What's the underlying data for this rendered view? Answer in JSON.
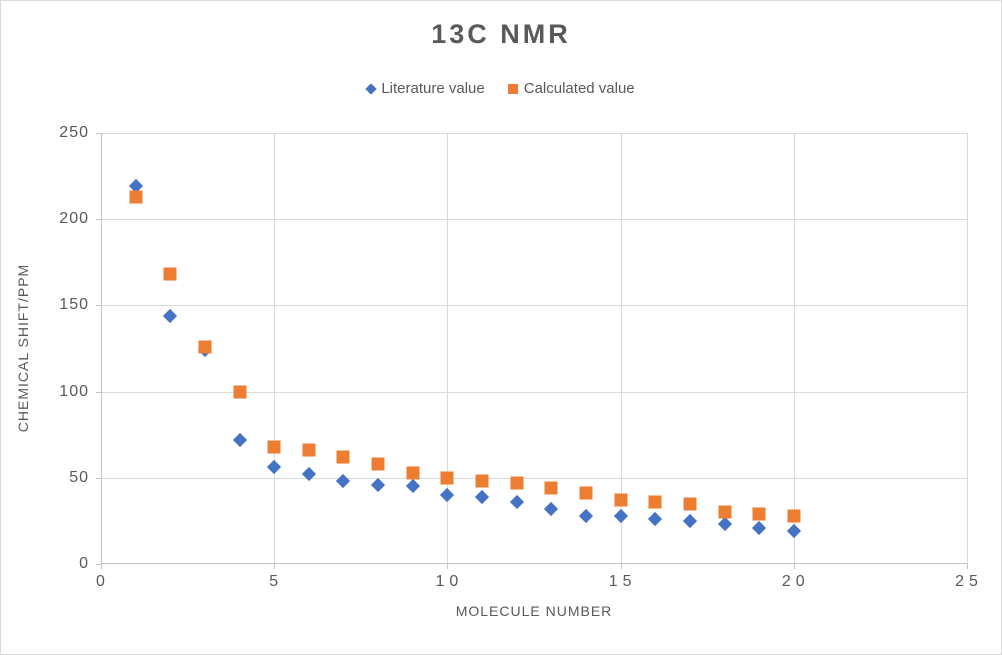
{
  "chart": {
    "title": "13C NMR",
    "text_color": "#595959",
    "gridline_color": "#d9d9d9",
    "axis_color": "#c3c3c3"
  },
  "chart_data": {
    "type": "scatter",
    "title": "13C NMR",
    "xlabel": "MOLECULE NUMBER",
    "ylabel": "CHEMICAL SHIFT/PPM",
    "xlim": [
      0,
      25
    ],
    "ylim": [
      0,
      250
    ],
    "x_ticks": [
      0,
      5,
      10,
      15,
      20,
      25
    ],
    "y_ticks": [
      0,
      50,
      100,
      150,
      200,
      250
    ],
    "grid": true,
    "legend_position": "top",
    "x": [
      1,
      2,
      3,
      4,
      5,
      6,
      7,
      8,
      9,
      10,
      11,
      12,
      13,
      14,
      15,
      16,
      17,
      18,
      19,
      20
    ],
    "series": [
      {
        "name": "Literature value",
        "marker": "diamond",
        "color": "#4472c4",
        "values": [
          219,
          144,
          124,
          72,
          56,
          52,
          48,
          46,
          45,
          40,
          39,
          36,
          32,
          28,
          28,
          26,
          25,
          23,
          21,
          19
        ]
      },
      {
        "name": "Calculated value",
        "marker": "square",
        "color": "#ed7d31",
        "values": [
          213,
          168,
          126,
          100,
          68,
          66,
          62,
          58,
          53,
          50,
          48,
          47,
          44,
          41,
          37,
          36,
          35,
          30,
          29,
          28
        ]
      }
    ]
  }
}
